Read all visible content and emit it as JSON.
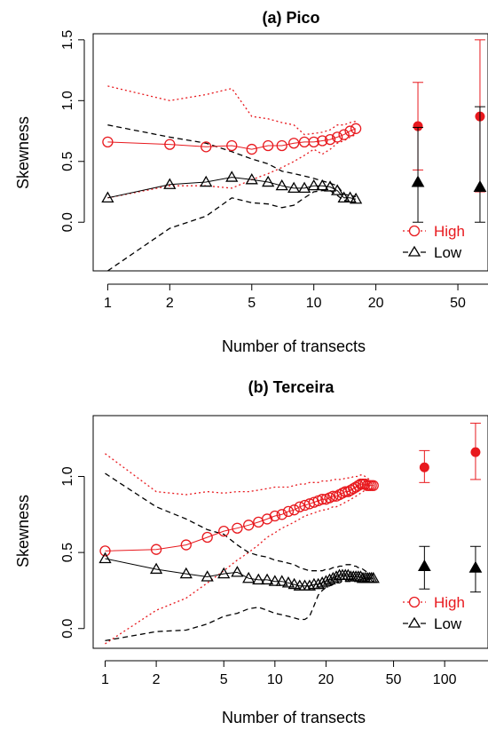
{
  "chart_data": [
    {
      "type": "line",
      "title": "(a) Pico",
      "xlabel": "Number of transects",
      "ylabel": "Skewness",
      "x_scale": "log",
      "xlim": [
        0.85,
        70
      ],
      "ylim": [
        -0.4,
        1.55
      ],
      "x_ticks": [
        1,
        2,
        5,
        10,
        20,
        50
      ],
      "x_tick_labels": [
        "1",
        "2",
        "5",
        "10",
        "20",
        "50"
      ],
      "y_ticks": [
        0,
        0.5,
        1,
        1.5
      ],
      "y_tick_labels": [
        "0.0",
        "0.5",
        "1.0",
        "1.5"
      ],
      "colors": {
        "High": "#e8191e",
        "Low": "#000000"
      },
      "legend": {
        "position": "bottom-right",
        "entries": [
          "High",
          "Low"
        ]
      },
      "series": [
        {
          "name": "High",
          "x": [
            1,
            2,
            3,
            4,
            5,
            6,
            7,
            8,
            9,
            10,
            11,
            12,
            13,
            14,
            15,
            16
          ],
          "values": [
            0.66,
            0.64,
            0.62,
            0.63,
            0.6,
            0.63,
            0.63,
            0.65,
            0.66,
            0.66,
            0.67,
            0.68,
            0.7,
            0.72,
            0.75,
            0.77
          ],
          "upper": [
            1.12,
            1.0,
            1.05,
            1.1,
            0.87,
            0.85,
            0.82,
            0.8,
            0.72,
            0.73,
            0.74,
            0.76,
            0.8,
            0.8,
            0.82,
            0.83
          ],
          "lower": [
            0.2,
            0.3,
            0.3,
            0.28,
            0.35,
            0.4,
            0.45,
            0.5,
            0.55,
            0.6,
            0.56,
            0.6,
            0.65,
            0.67,
            0.7,
            0.72
          ],
          "marker": "open-circle",
          "line_style": "dotted"
        },
        {
          "name": "Low",
          "x": [
            1,
            2,
            3,
            4,
            5,
            6,
            7,
            8,
            9,
            10,
            11,
            12,
            13,
            14,
            15,
            16
          ],
          "values": [
            0.2,
            0.31,
            0.33,
            0.37,
            0.35,
            0.33,
            0.3,
            0.28,
            0.28,
            0.3,
            0.3,
            0.29,
            0.26,
            0.2,
            0.2,
            0.19
          ],
          "upper": [
            0.8,
            0.7,
            0.65,
            0.58,
            0.52,
            0.48,
            0.42,
            0.4,
            0.38,
            0.36,
            0.34,
            0.32,
            0.3,
            0.23,
            0.22,
            0.21
          ],
          "lower": [
            -0.4,
            -0.05,
            0.05,
            0.2,
            0.16,
            0.15,
            0.12,
            0.14,
            0.2,
            0.25,
            0.26,
            0.26,
            0.22,
            0.18,
            0.17,
            0.16
          ],
          "marker": "open-triangle",
          "line_style": "dashed"
        }
      ],
      "summary_points": [
        {
          "series": "High",
          "x": 32,
          "y": 0.79,
          "low": 0.43,
          "high": 1.15
        },
        {
          "series": "High",
          "x": 64,
          "y": 0.87,
          "low": 0.25,
          "high": 1.5
        },
        {
          "series": "Low",
          "x": 32,
          "y": 0.33,
          "low": 0.0,
          "high": 0.78
        },
        {
          "series": "Low",
          "x": 64,
          "y": 0.29,
          "low": 0.0,
          "high": 0.95
        }
      ]
    },
    {
      "type": "line",
      "title": "(b) Terceira",
      "xlabel": "Number of transects",
      "ylabel": "Skewness",
      "x_scale": "log",
      "xlim": [
        0.85,
        180
      ],
      "ylim": [
        -0.13,
        1.4
      ],
      "x_ticks": [
        1,
        2,
        5,
        10,
        20,
        50,
        100
      ],
      "x_tick_labels": [
        "1",
        "2",
        "5",
        "10",
        "20",
        "50",
        "100"
      ],
      "y_ticks": [
        0,
        0.5,
        1
      ],
      "y_tick_labels": [
        "0.0",
        "0.5",
        "1.0"
      ],
      "colors": {
        "High": "#e8191e",
        "Low": "#000000"
      },
      "legend": {
        "position": "bottom-right",
        "entries": [
          "High",
          "Low"
        ]
      },
      "series": [
        {
          "name": "High",
          "x": [
            1,
            2,
            3,
            4,
            5,
            6,
            7,
            8,
            9,
            10,
            11,
            12,
            13,
            14,
            15,
            16,
            17,
            18,
            19,
            20,
            21,
            22,
            23,
            24,
            25,
            26,
            27,
            28,
            29,
            30,
            31,
            32,
            33,
            34,
            35,
            36,
            37,
            38
          ],
          "values": [
            0.51,
            0.52,
            0.55,
            0.6,
            0.64,
            0.66,
            0.68,
            0.7,
            0.72,
            0.74,
            0.75,
            0.77,
            0.78,
            0.8,
            0.81,
            0.82,
            0.83,
            0.84,
            0.85,
            0.85,
            0.86,
            0.87,
            0.87,
            0.88,
            0.89,
            0.9,
            0.9,
            0.91,
            0.92,
            0.93,
            0.94,
            0.95,
            0.95,
            0.95,
            0.94,
            0.94,
            0.94,
            0.94
          ],
          "upper": [
            1.15,
            0.9,
            0.88,
            0.9,
            0.89,
            0.9,
            0.9,
            0.91,
            0.92,
            0.93,
            0.93,
            0.93,
            0.94,
            0.95,
            0.95,
            0.96,
            0.96,
            0.96,
            0.97,
            0.97,
            0.97,
            0.98,
            0.98,
            0.98,
            0.98,
            0.99,
            0.99,
            0.99,
            1.0,
            1.0,
            1.0,
            1.01,
            1.01,
            1.0,
            0.99,
            0.98,
            0.97,
            0.96
          ],
          "lower": [
            -0.1,
            0.12,
            0.2,
            0.3,
            0.38,
            0.45,
            0.5,
            0.55,
            0.6,
            0.63,
            0.66,
            0.68,
            0.7,
            0.72,
            0.74,
            0.75,
            0.76,
            0.77,
            0.78,
            0.78,
            0.79,
            0.8,
            0.8,
            0.81,
            0.82,
            0.83,
            0.84,
            0.85,
            0.86,
            0.87,
            0.88,
            0.89,
            0.9,
            0.91,
            0.92,
            0.92,
            0.92,
            0.93
          ],
          "marker": "open-circle",
          "line_style": "dotted"
        },
        {
          "name": "Low",
          "x": [
            1,
            2,
            3,
            4,
            5,
            6,
            7,
            8,
            9,
            10,
            11,
            12,
            13,
            14,
            15,
            16,
            17,
            18,
            19,
            20,
            21,
            22,
            23,
            24,
            25,
            26,
            27,
            28,
            29,
            30,
            31,
            32,
            33,
            34,
            35,
            36,
            37,
            38
          ],
          "values": [
            0.46,
            0.39,
            0.36,
            0.34,
            0.36,
            0.37,
            0.33,
            0.32,
            0.32,
            0.31,
            0.31,
            0.3,
            0.29,
            0.28,
            0.28,
            0.28,
            0.29,
            0.29,
            0.3,
            0.31,
            0.32,
            0.33,
            0.34,
            0.35,
            0.35,
            0.35,
            0.35,
            0.34,
            0.34,
            0.34,
            0.34,
            0.34,
            0.33,
            0.33,
            0.33,
            0.33,
            0.33,
            0.33
          ],
          "upper": [
            1.02,
            0.8,
            0.72,
            0.65,
            0.62,
            0.55,
            0.5,
            0.48,
            0.47,
            0.45,
            0.44,
            0.43,
            0.42,
            0.4,
            0.39,
            0.38,
            0.38,
            0.38,
            0.38,
            0.39,
            0.39,
            0.4,
            0.4,
            0.41,
            0.41,
            0.42,
            0.42,
            0.42,
            0.41,
            0.41,
            0.4,
            0.4,
            0.39,
            0.38,
            0.37,
            0.36,
            0.36,
            0.35
          ],
          "lower": [
            -0.08,
            -0.02,
            -0.01,
            0.03,
            0.08,
            0.1,
            0.13,
            0.14,
            0.12,
            0.1,
            0.09,
            0.08,
            0.07,
            0.06,
            0.06,
            0.08,
            0.15,
            0.22,
            0.25,
            0.27,
            0.28,
            0.29,
            0.3,
            0.3,
            0.31,
            0.31,
            0.31,
            0.31,
            0.31,
            0.31,
            0.31,
            0.31,
            0.31,
            0.31,
            0.31,
            0.31,
            0.31,
            0.31
          ],
          "marker": "open-triangle",
          "line_style": "dashed"
        }
      ],
      "summary_points": [
        {
          "series": "High",
          "x": 76,
          "y": 1.06,
          "low": 0.96,
          "high": 1.17
        },
        {
          "series": "High",
          "x": 152,
          "y": 1.16,
          "low": 0.98,
          "high": 1.35
        },
        {
          "series": "Low",
          "x": 76,
          "y": 0.41,
          "low": 0.26,
          "high": 0.54
        },
        {
          "series": "Low",
          "x": 152,
          "y": 0.4,
          "low": 0.24,
          "high": 0.54
        }
      ]
    }
  ]
}
